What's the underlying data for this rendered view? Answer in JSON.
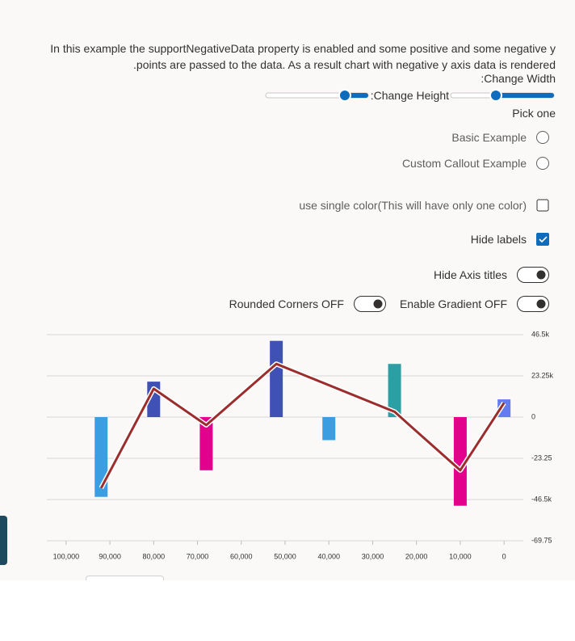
{
  "description": "In this example the supportNegativeData property is enabled and some positive and some negative y points are passed to the data. As a result chart with negative y axis data is rendered.",
  "controls": {
    "change_width": "Change Width:",
    "change_height": "Change Height:",
    "pick_one": "Pick one",
    "options": [
      "Basic Example",
      "Custom Callout Example"
    ],
    "single_color": "use single color(This will have only one color)",
    "hide_labels": "Hide labels",
    "hide_axis_titles": "Hide Axis titles",
    "rounded_corners": "Rounded Corners OFF",
    "enable_gradient": "Enable Gradient OFF"
  },
  "chart_data": {
    "type": "bar-line",
    "xlim": [
      104400,
      -4400
    ],
    "xticks": [
      {
        "value": 100000,
        "label": "100,000"
      },
      {
        "value": 90000,
        "label": "90,000"
      },
      {
        "value": 80000,
        "label": "80,000"
      },
      {
        "value": 70000,
        "label": "70,000"
      },
      {
        "value": 60000,
        "label": "60,000"
      },
      {
        "value": 50000,
        "label": "50,000"
      },
      {
        "value": 40000,
        "label": "40,000"
      },
      {
        "value": 30000,
        "label": "30,000"
      },
      {
        "value": 20000,
        "label": "20,000"
      },
      {
        "value": 10000,
        "label": "10,000"
      },
      0
    ],
    "ylim": [
      -69750,
      46500
    ],
    "yticks": [
      {
        "value": 46500,
        "label": "46.5k"
      },
      {
        "value": 23250,
        "label": "23.25k"
      },
      0,
      {
        "value": -23250,
        "label": "-23.25"
      },
      {
        "value": -46500,
        "label": "-46.5k"
      },
      {
        "value": -69750,
        "label": "-69.75"
      }
    ],
    "grid": true,
    "series": [
      {
        "type": "bar",
        "x": [
          92000,
          80000,
          68000,
          52000,
          40000,
          25000,
          10000,
          0
        ],
        "values": [
          -45000,
          20000,
          -30000,
          43000,
          -13000,
          30000,
          -50000,
          10000
        ],
        "colors": [
          "#3c9ee0",
          "#3f51b5",
          "#e3008c",
          "#3f51b5",
          "#3c9ee0",
          "#2aa0a4",
          "#e3008c",
          "#637cef"
        ]
      },
      {
        "type": "line",
        "x": [
          92000,
          80000,
          68000,
          52000,
          25000,
          10000,
          0
        ],
        "values": [
          -40000,
          16000,
          -4500,
          30000,
          3000,
          -30000,
          8000
        ],
        "color": "#9b2d2d"
      }
    ]
  }
}
